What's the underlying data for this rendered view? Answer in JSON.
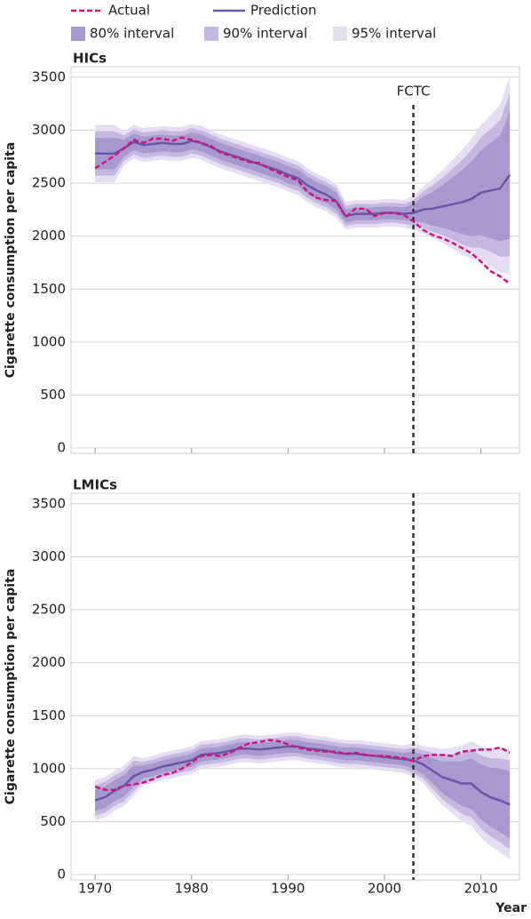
{
  "legend": [
    {
      "name": "Actual",
      "color": "#d4127f",
      "style": "dashed"
    },
    {
      "name": "Prediction",
      "color": "#6656a8",
      "style": "solid"
    },
    {
      "name": "80% interval",
      "color": "#a699cf",
      "style": "box"
    },
    {
      "name": "90% interval",
      "color": "#c3b9e0",
      "style": "box"
    },
    {
      "name": "95% interval",
      "color": "#e3def1",
      "style": "box"
    }
  ],
  "chart_data": [
    {
      "type": "line",
      "title": "HICs",
      "ylabel": "Cigarette consumption per capita",
      "x": [
        1970,
        1971,
        1972,
        1973,
        1974,
        1975,
        1976,
        1977,
        1978,
        1979,
        1980,
        1981,
        1982,
        1983,
        1984,
        1985,
        1986,
        1987,
        1988,
        1989,
        1990,
        1991,
        1992,
        1993,
        1994,
        1995,
        1996,
        1997,
        1998,
        1999,
        2000,
        2001,
        2002,
        2003,
        2004,
        2005,
        2006,
        2007,
        2008,
        2009,
        2010,
        2011,
        2012,
        2013
      ],
      "series": [
        {
          "values": [
            2640,
            2700,
            2760,
            2830,
            2910,
            2880,
            2920,
            2920,
            2900,
            2930,
            2910,
            2880,
            2850,
            2790,
            2760,
            2730,
            2700,
            2690,
            2640,
            2600,
            2560,
            2530,
            2420,
            2360,
            2340,
            2330,
            2180,
            2260,
            2260,
            2190,
            2220,
            2220,
            2200,
            2140,
            2060,
            2010,
            1980,
            1940,
            1890,
            1840,
            1760,
            1670,
            1620,
            1550
          ]
        },
        {
          "values": [
            2780,
            2780,
            2780,
            2830,
            2890,
            2860,
            2870,
            2880,
            2870,
            2870,
            2900,
            2880,
            2840,
            2800,
            2770,
            2740,
            2710,
            2680,
            2650,
            2620,
            2580,
            2550,
            2480,
            2430,
            2390,
            2330,
            2190,
            2210,
            2210,
            2210,
            2220,
            2220,
            2210,
            2220,
            2250,
            2260,
            2280,
            2300,
            2320,
            2350,
            2410,
            2430,
            2450,
            2580
          ]
        }
      ],
      "bands": [
        {
          "lower": [
            2630,
            2630,
            2630,
            2750,
            2810,
            2780,
            2790,
            2800,
            2790,
            2790,
            2820,
            2800,
            2760,
            2720,
            2690,
            2660,
            2630,
            2600,
            2570,
            2540,
            2500,
            2470,
            2400,
            2350,
            2310,
            2250,
            2130,
            2150,
            2150,
            2150,
            2160,
            2160,
            2150,
            2140,
            2130,
            2100,
            2080,
            2050,
            2020,
            2000,
            2010,
            1980,
            1950,
            1980
          ],
          "upper": [
            2930,
            2930,
            2930,
            2910,
            2970,
            2940,
            2950,
            2960,
            2950,
            2950,
            2980,
            2960,
            2920,
            2880,
            2850,
            2820,
            2790,
            2760,
            2730,
            2700,
            2660,
            2630,
            2560,
            2510,
            2470,
            2410,
            2250,
            2270,
            2270,
            2270,
            2280,
            2280,
            2270,
            2300,
            2370,
            2420,
            2480,
            2550,
            2620,
            2700,
            2810,
            2880,
            2950,
            3180
          ]
        },
        {
          "lower": [
            2570,
            2570,
            2570,
            2710,
            2770,
            2740,
            2750,
            2760,
            2750,
            2750,
            2780,
            2760,
            2720,
            2680,
            2650,
            2620,
            2590,
            2560,
            2530,
            2500,
            2460,
            2430,
            2360,
            2310,
            2270,
            2210,
            2095,
            2115,
            2115,
            2115,
            2125,
            2125,
            2115,
            2100,
            2080,
            2040,
            2010,
            1970,
            1925,
            1890,
            1890,
            1850,
            1805,
            1810
          ],
          "upper": [
            2990,
            2990,
            2990,
            2950,
            3010,
            2980,
            2990,
            3000,
            2990,
            2990,
            3020,
            3000,
            2960,
            2920,
            2890,
            2860,
            2830,
            2800,
            2770,
            2740,
            2700,
            2670,
            2600,
            2550,
            2510,
            2450,
            2285,
            2305,
            2305,
            2305,
            2315,
            2315,
            2305,
            2340,
            2420,
            2480,
            2550,
            2630,
            2715,
            2810,
            2930,
            3010,
            3095,
            3350
          ]
        },
        {
          "lower": [
            2510,
            2510,
            2510,
            2670,
            2730,
            2700,
            2710,
            2720,
            2710,
            2710,
            2740,
            2720,
            2680,
            2640,
            2610,
            2580,
            2550,
            2520,
            2490,
            2460,
            2420,
            2390,
            2320,
            2270,
            2230,
            2170,
            2060,
            2080,
            2080,
            2080,
            2090,
            2090,
            2080,
            2060,
            2030,
            1980,
            1940,
            1885,
            1830,
            1785,
            1770,
            1715,
            1660,
            1640
          ],
          "upper": [
            3050,
            3050,
            3050,
            2990,
            3050,
            3020,
            3030,
            3040,
            3030,
            3030,
            3060,
            3040,
            3000,
            2960,
            2930,
            2900,
            2870,
            2840,
            2810,
            2780,
            2740,
            2710,
            2640,
            2590,
            2550,
            2490,
            2320,
            2340,
            2340,
            2340,
            2350,
            2350,
            2340,
            2380,
            2470,
            2540,
            2620,
            2715,
            2810,
            2915,
            3050,
            3145,
            3240,
            3520
          ]
        }
      ],
      "vline": {
        "x": 2003,
        "label": "FCTC"
      },
      "xlim": [
        1967.5,
        2014
      ],
      "ylim": [
        -50,
        3600
      ],
      "xticks": [
        1970,
        1980,
        1990,
        2000,
        2010
      ],
      "yticks": [
        0,
        500,
        1000,
        1500,
        2000,
        2500,
        3000,
        3500
      ],
      "grid": true
    },
    {
      "type": "line",
      "title": "LMICs",
      "ylabel": "Cigarette consumption per capita",
      "xlabel": "Year",
      "x": [
        1970,
        1971,
        1972,
        1973,
        1974,
        1975,
        1976,
        1977,
        1978,
        1979,
        1980,
        1981,
        1982,
        1983,
        1984,
        1985,
        1986,
        1987,
        1988,
        1989,
        1990,
        1991,
        1992,
        1993,
        1994,
        1995,
        1996,
        1997,
        1998,
        1999,
        2000,
        2001,
        2002,
        2003,
        2004,
        2005,
        2006,
        2007,
        2008,
        2009,
        2010,
        2011,
        2012,
        2013
      ],
      "series": [
        {
          "values": [
            830,
            800,
            800,
            840,
            850,
            870,
            900,
            940,
            960,
            1000,
            1060,
            1120,
            1130,
            1120,
            1150,
            1200,
            1240,
            1250,
            1270,
            1260,
            1230,
            1200,
            1180,
            1170,
            1160,
            1160,
            1140,
            1150,
            1130,
            1120,
            1120,
            1110,
            1100,
            1070,
            1120,
            1130,
            1130,
            1120,
            1160,
            1170,
            1180,
            1180,
            1200,
            1150
          ]
        },
        {
          "values": [
            700,
            730,
            790,
            840,
            930,
            970,
            990,
            1020,
            1040,
            1060,
            1080,
            1130,
            1140,
            1150,
            1170,
            1190,
            1190,
            1180,
            1190,
            1200,
            1210,
            1210,
            1190,
            1180,
            1170,
            1150,
            1140,
            1140,
            1130,
            1120,
            1110,
            1100,
            1090,
            1080,
            1040,
            980,
            920,
            890,
            860,
            860,
            780,
            730,
            700,
            660
          ]
        }
      ],
      "bands": [
        {
          "lower": [
            600,
            630,
            690,
            740,
            830,
            910,
            930,
            960,
            980,
            1000,
            1020,
            1070,
            1080,
            1090,
            1110,
            1130,
            1130,
            1120,
            1130,
            1140,
            1150,
            1150,
            1130,
            1120,
            1110,
            1090,
            1080,
            1080,
            1070,
            1060,
            1050,
            1040,
            1030,
            1000,
            950,
            860,
            770,
            710,
            650,
            620,
            520,
            450,
            400,
            340
          ],
          "upper": [
            800,
            830,
            890,
            940,
            1030,
            1030,
            1050,
            1080,
            1100,
            1120,
            1140,
            1190,
            1200,
            1210,
            1230,
            1250,
            1250,
            1240,
            1250,
            1260,
            1270,
            1270,
            1250,
            1240,
            1230,
            1210,
            1200,
            1200,
            1190,
            1180,
            1170,
            1160,
            1150,
            1160,
            1130,
            1100,
            1070,
            1070,
            1070,
            1100,
            1040,
            1010,
            1000,
            980
          ]
        },
        {
          "lower": [
            555,
            585,
            645,
            695,
            785,
            875,
            895,
            925,
            945,
            965,
            985,
            1035,
            1045,
            1055,
            1075,
            1095,
            1095,
            1085,
            1095,
            1105,
            1115,
            1115,
            1095,
            1085,
            1075,
            1055,
            1045,
            1045,
            1035,
            1025,
            1015,
            1005,
            995,
            960,
            905,
            810,
            710,
            645,
            575,
            540,
            435,
            360,
            305,
            240
          ],
          "upper": [
            845,
            875,
            935,
            985,
            1075,
            1065,
            1085,
            1115,
            1135,
            1155,
            1175,
            1225,
            1235,
            1245,
            1265,
            1285,
            1285,
            1275,
            1285,
            1295,
            1305,
            1305,
            1285,
            1275,
            1265,
            1245,
            1235,
            1235,
            1225,
            1215,
            1205,
            1195,
            1185,
            1200,
            1175,
            1150,
            1130,
            1135,
            1145,
            1180,
            1125,
            1100,
            1095,
            1080
          ]
        },
        {
          "lower": [
            510,
            540,
            600,
            650,
            740,
            840,
            860,
            890,
            910,
            930,
            950,
            1000,
            1010,
            1020,
            1040,
            1060,
            1060,
            1050,
            1060,
            1070,
            1080,
            1080,
            1060,
            1050,
            1040,
            1020,
            1010,
            1010,
            1000,
            990,
            980,
            970,
            960,
            920,
            865,
            760,
            655,
            580,
            505,
            460,
            350,
            270,
            210,
            140
          ],
          "upper": [
            890,
            920,
            980,
            1030,
            1120,
            1100,
            1120,
            1150,
            1170,
            1190,
            1210,
            1260,
            1270,
            1280,
            1300,
            1320,
            1320,
            1310,
            1320,
            1330,
            1340,
            1340,
            1320,
            1310,
            1300,
            1280,
            1270,
            1270,
            1260,
            1250,
            1240,
            1230,
            1220,
            1240,
            1215,
            1200,
            1185,
            1200,
            1215,
            1260,
            1210,
            1190,
            1190,
            1180
          ]
        }
      ],
      "vline": {
        "x": 2003
      },
      "xlim": [
        1967.5,
        2014
      ],
      "ylim": [
        -50,
        3600
      ],
      "xticks": [
        1970,
        1980,
        1990,
        2000,
        2010
      ],
      "yticks": [
        0,
        500,
        1000,
        1500,
        2000,
        2500,
        3000,
        3500
      ],
      "grid": true
    }
  ]
}
